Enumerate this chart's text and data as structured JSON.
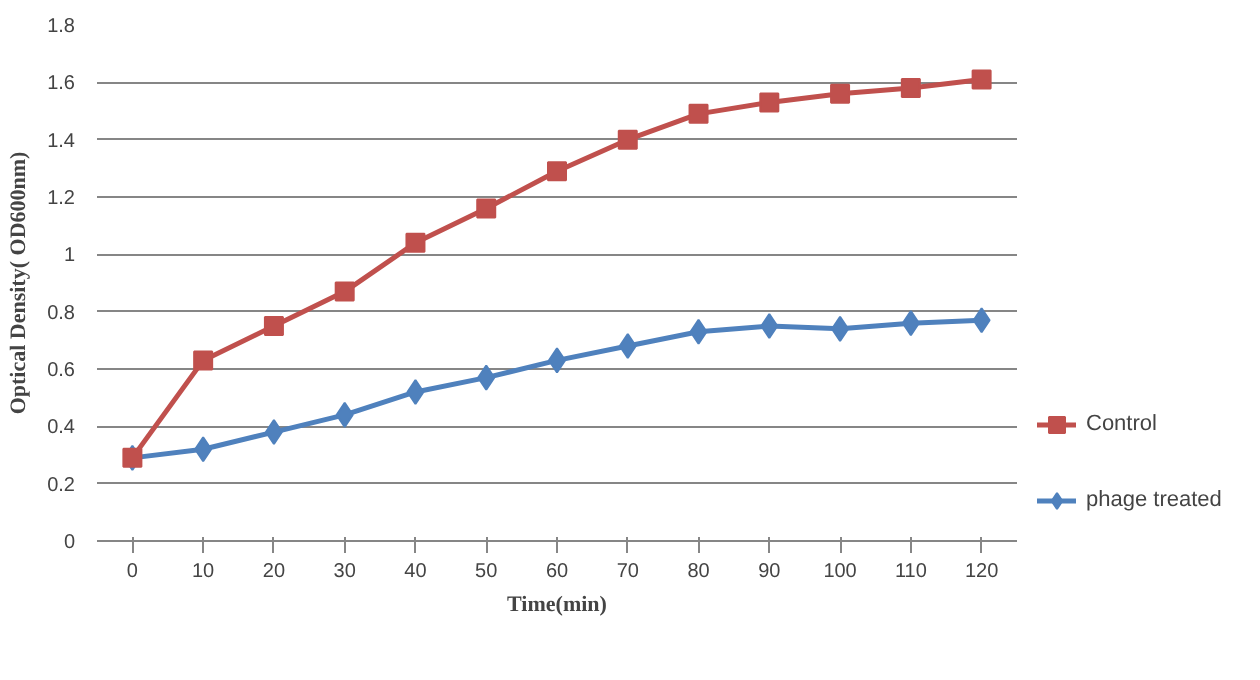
{
  "chart_data": {
    "type": "line",
    "xlabel": "Time(min)",
    "ylabel": "Optical Density( OD600nm)",
    "categories": [
      "0",
      "10",
      "20",
      "30",
      "40",
      "50",
      "60",
      "70",
      "80",
      "90",
      "100",
      "110",
      "120"
    ],
    "series": [
      {
        "name": "Control",
        "color": "#c0504d",
        "marker": "square",
        "values": [
          0.29,
          0.63,
          0.75,
          0.87,
          1.04,
          1.16,
          1.29,
          1.4,
          1.49,
          1.53,
          1.56,
          1.58,
          1.61
        ]
      },
      {
        "name": "phage treated",
        "color": "#4f81bd",
        "marker": "diamond",
        "values": [
          0.29,
          0.32,
          0.38,
          0.44,
          0.52,
          0.57,
          0.63,
          0.68,
          0.73,
          0.75,
          0.74,
          0.76,
          0.77
        ]
      }
    ],
    "ylim": [
      0,
      1.8
    ],
    "yticks": [
      0,
      0.2,
      0.4,
      0.6,
      0.8,
      1,
      1.2,
      1.4,
      1.6,
      1.8
    ],
    "grid": "y",
    "legend": "right"
  }
}
